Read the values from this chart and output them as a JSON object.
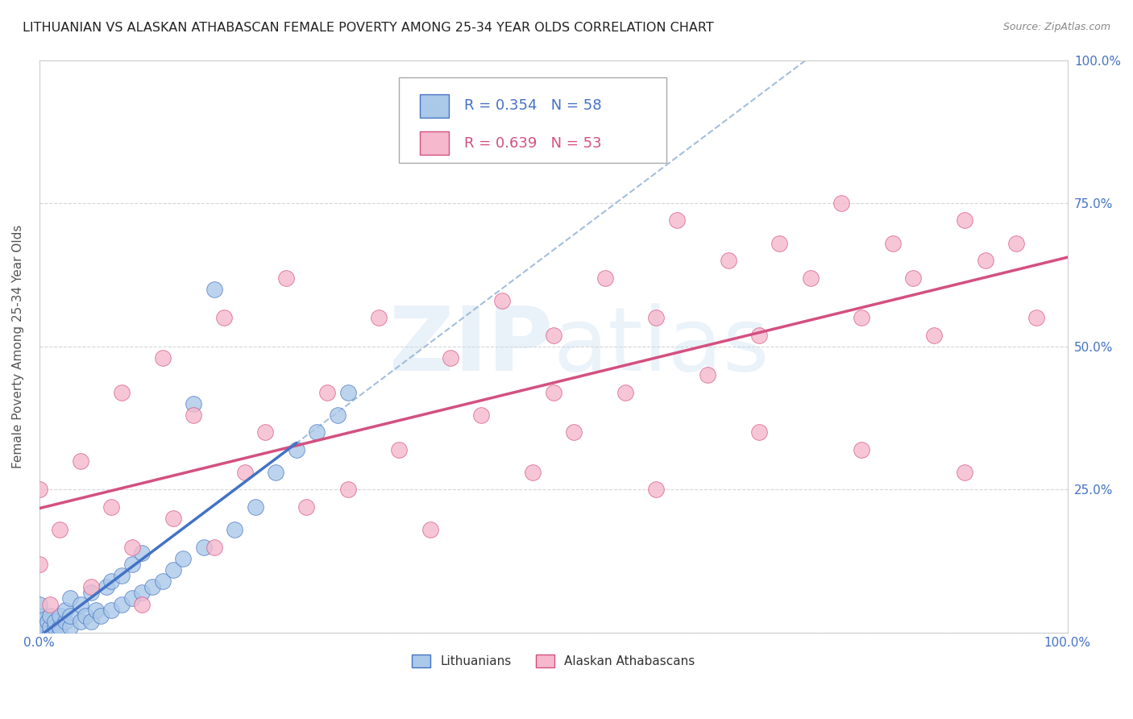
{
  "title": "LITHUANIAN VS ALASKAN ATHABASCAN FEMALE POVERTY AMONG 25-34 YEAR OLDS CORRELATION CHART",
  "source": "Source: ZipAtlas.com",
  "ylabel": "Female Poverty Among 25-34 Year Olds",
  "xlim": [
    0.0,
    1.0
  ],
  "ylim": [
    0.0,
    1.0
  ],
  "legend_r1": "R = 0.354",
  "legend_n1": "N = 58",
  "legend_r2": "R = 0.639",
  "legend_n2": "N = 53",
  "legend_label1": "Lithuanians",
  "legend_label2": "Alaskan Athabascans",
  "color_blue": "#aac8e8",
  "color_pink": "#f5b8cc",
  "line_blue": "#4472c4",
  "line_pink": "#d45080",
  "line_dashed": "#9ab8d8",
  "background": "#ffffff",
  "right_tick_color": "#4472c4",
  "x_tick_color": "#4472c4",
  "lith_x": [
    0.0,
    0.0,
    0.0,
    0.0,
    0.0,
    0.0,
    0.0,
    0.0,
    0.0,
    0.0,
    0.0,
    0.0,
    0.005,
    0.005,
    0.008,
    0.01,
    0.01,
    0.01,
    0.015,
    0.015,
    0.02,
    0.02,
    0.02,
    0.025,
    0.025,
    0.03,
    0.03,
    0.03,
    0.04,
    0.04,
    0.045,
    0.05,
    0.05,
    0.055,
    0.06,
    0.065,
    0.07,
    0.07,
    0.08,
    0.08,
    0.09,
    0.09,
    0.1,
    0.1,
    0.11,
    0.12,
    0.13,
    0.14,
    0.15,
    0.16,
    0.17,
    0.19,
    0.21,
    0.23,
    0.25,
    0.27,
    0.29,
    0.3
  ],
  "lith_y": [
    0.0,
    0.0,
    0.0,
    0.0,
    0.0,
    0.0,
    0.0,
    0.01,
    0.01,
    0.02,
    0.03,
    0.05,
    0.0,
    0.01,
    0.02,
    0.0,
    0.01,
    0.03,
    0.01,
    0.02,
    0.0,
    0.01,
    0.03,
    0.02,
    0.04,
    0.01,
    0.03,
    0.06,
    0.02,
    0.05,
    0.03,
    0.02,
    0.07,
    0.04,
    0.03,
    0.08,
    0.04,
    0.09,
    0.05,
    0.1,
    0.06,
    0.12,
    0.07,
    0.14,
    0.08,
    0.09,
    0.11,
    0.13,
    0.4,
    0.15,
    0.6,
    0.18,
    0.22,
    0.28,
    0.32,
    0.35,
    0.38,
    0.42
  ],
  "atha_x": [
    0.0,
    0.0,
    0.01,
    0.02,
    0.04,
    0.05,
    0.07,
    0.08,
    0.09,
    0.1,
    0.12,
    0.13,
    0.15,
    0.17,
    0.18,
    0.2,
    0.22,
    0.24,
    0.26,
    0.28,
    0.3,
    0.33,
    0.35,
    0.38,
    0.4,
    0.43,
    0.45,
    0.48,
    0.5,
    0.52,
    0.55,
    0.57,
    0.6,
    0.62,
    0.65,
    0.67,
    0.7,
    0.72,
    0.75,
    0.78,
    0.8,
    0.83,
    0.85,
    0.87,
    0.9,
    0.92,
    0.95,
    0.97,
    0.5,
    0.6,
    0.7,
    0.8,
    0.9
  ],
  "atha_y": [
    0.12,
    0.25,
    0.05,
    0.18,
    0.3,
    0.08,
    0.22,
    0.42,
    0.15,
    0.05,
    0.48,
    0.2,
    0.38,
    0.15,
    0.55,
    0.28,
    0.35,
    0.62,
    0.22,
    0.42,
    0.25,
    0.55,
    0.32,
    0.18,
    0.48,
    0.38,
    0.58,
    0.28,
    0.52,
    0.35,
    0.62,
    0.42,
    0.55,
    0.72,
    0.45,
    0.65,
    0.52,
    0.68,
    0.62,
    0.75,
    0.55,
    0.68,
    0.62,
    0.52,
    0.72,
    0.65,
    0.68,
    0.55,
    0.42,
    0.25,
    0.35,
    0.32,
    0.28
  ]
}
